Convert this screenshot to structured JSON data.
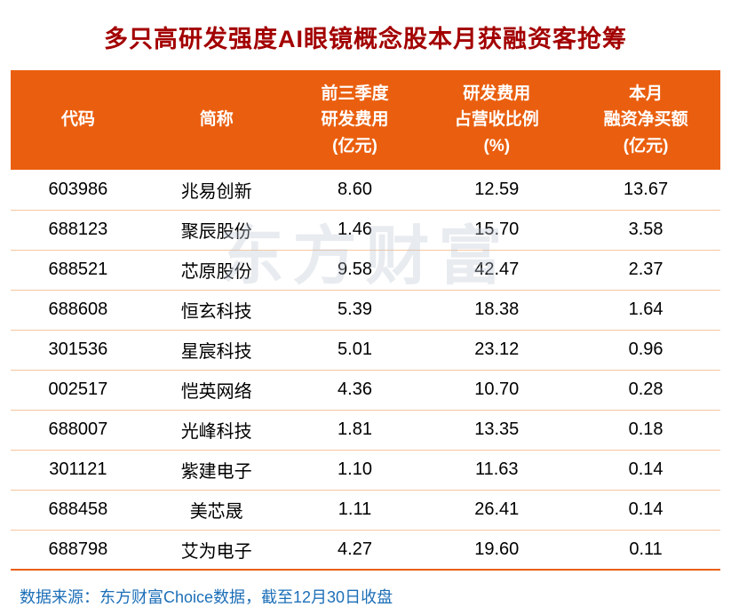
{
  "page": {
    "title": "多只高研发强度AI眼镜概念股本月获融资客抢筹",
    "footer": "数据来源：东方财富Choice数据，截至12月30日收盘",
    "watermark": "东方财富"
  },
  "colors": {
    "accent_orange": "#ea5f0f",
    "title_red": "#a30000",
    "footer_blue": "#1d6fb8",
    "row_divider": "#f5c6a0"
  },
  "chart_data": {
    "type": "table",
    "title": "多只高研发强度AI眼镜概念股本月获融资客抢筹",
    "columns": [
      "代码",
      "简称",
      "前三季度研发费用(亿元)",
      "研发费用占营收比例(%)",
      "本月融资净买额(亿元)"
    ],
    "header_lines": [
      [
        "代码"
      ],
      [
        "简称"
      ],
      [
        "前三季度",
        "研发费用",
        "(亿元)"
      ],
      [
        "研发费用",
        "占营收比例",
        "(%)"
      ],
      [
        "本月",
        "融资净买额",
        "(亿元)"
      ]
    ],
    "rows": [
      [
        "603986",
        "兆易创新",
        "8.60",
        "12.59",
        "13.67"
      ],
      [
        "688123",
        "聚辰股份",
        "1.46",
        "15.70",
        "3.58"
      ],
      [
        "688521",
        "芯原股份",
        "9.58",
        "42.47",
        "2.37"
      ],
      [
        "688608",
        "恒玄科技",
        "5.39",
        "18.38",
        "1.64"
      ],
      [
        "301536",
        "星宸科技",
        "5.01",
        "23.12",
        "0.96"
      ],
      [
        "002517",
        "恺英网络",
        "4.36",
        "10.70",
        "0.28"
      ],
      [
        "688007",
        "光峰科技",
        "1.81",
        "13.35",
        "0.18"
      ],
      [
        "301121",
        "紫建电子",
        "1.10",
        "11.63",
        "0.14"
      ],
      [
        "688458",
        "美芯晟",
        "1.11",
        "26.41",
        "0.14"
      ],
      [
        "688798",
        "艾为电子",
        "4.27",
        "19.60",
        "0.11"
      ]
    ],
    "source_note": "数据来源：东方财富Choice数据，截至12月30日收盘"
  }
}
